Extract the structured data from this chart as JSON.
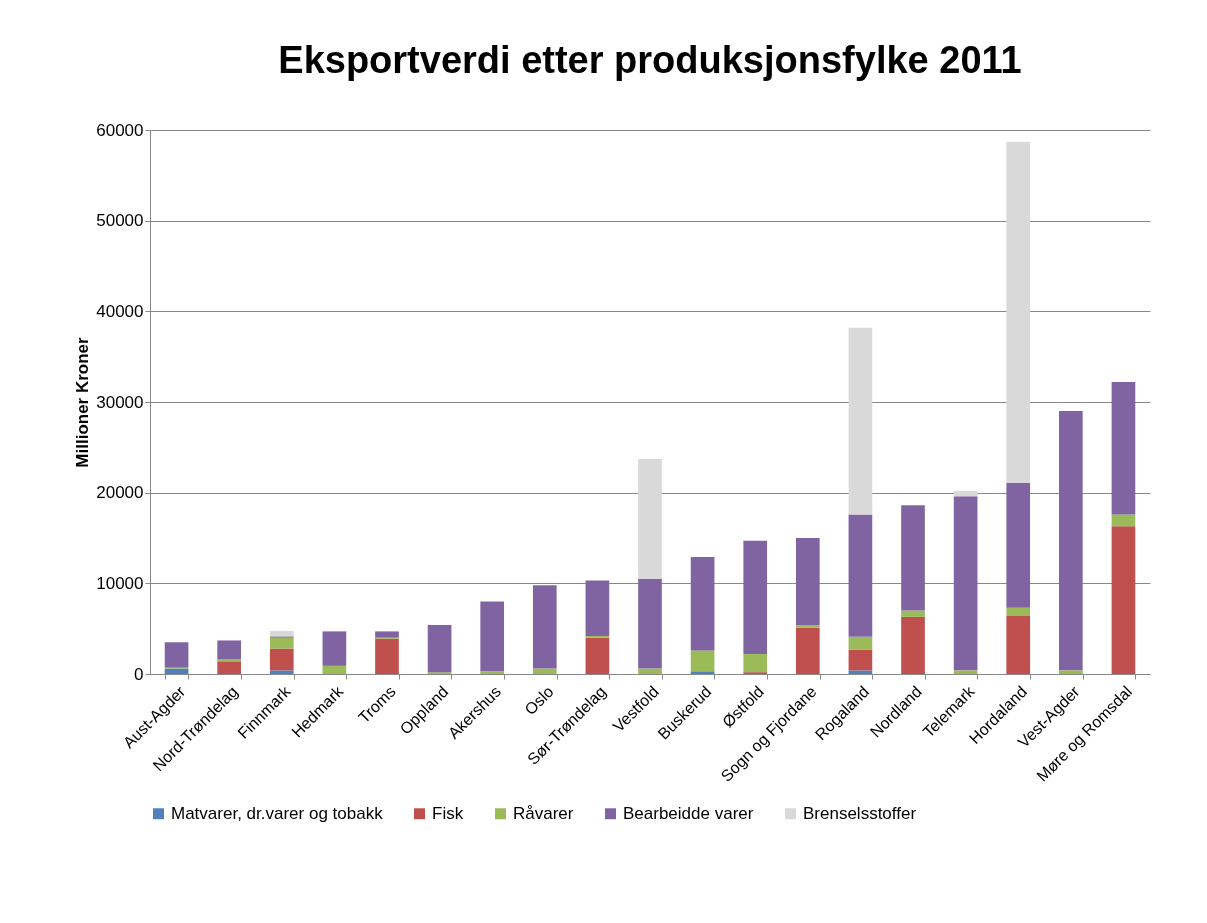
{
  "chart_data": {
    "type": "bar",
    "title": "Eksportverdi etter produksjonsfylke 2011",
    "ylabel": "Millioner Kroner",
    "stacked": true,
    "grid": "y",
    "legend": "bottom",
    "categories": [
      "Aust-Agder",
      "Nord-Trøndelag",
      "Finnmark",
      "Hedmark",
      "Troms",
      "Oppland",
      "Akershus",
      "Oslo",
      "Sør-Trøndelag",
      "Vestfold",
      "Buskerud",
      "Østfold",
      "Sogn og Fjordane",
      "Rogaland",
      "Nordland",
      "Telemark",
      "Hordaland",
      "Vest-Agder",
      "Møre og Romsdal"
    ],
    "ylim": [
      0,
      60000
    ],
    "yticks": [
      0,
      10000,
      20000,
      30000,
      40000,
      50000,
      60000
    ],
    "series": [
      {
        "name": "Matvarer, dr.varer og tobakk",
        "color": "#4f81bd",
        "values": [
          600,
          0,
          400,
          0,
          0,
          0,
          0,
          0,
          0,
          0,
          300,
          0,
          0,
          400,
          0,
          0,
          0,
          0,
          0
        ]
      },
      {
        "name": "Fisk",
        "color": "#c0504d",
        "values": [
          0,
          1400,
          2400,
          0,
          3900,
          0,
          0,
          0,
          4000,
          0,
          0,
          200,
          5100,
          2300,
          6300,
          0,
          6400,
          0,
          16300
        ]
      },
      {
        "name": "Råvarer",
        "color": "#9bbb59",
        "values": [
          100,
          200,
          1200,
          900,
          100,
          200,
          300,
          600,
          200,
          600,
          2300,
          2000,
          300,
          1400,
          700,
          400,
          900,
          400,
          1300
        ]
      },
      {
        "name": "Bearbeidde varer",
        "color": "#8064a2",
        "values": [
          2800,
          2100,
          150,
          3800,
          700,
          5200,
          7700,
          9200,
          6100,
          9900,
          10300,
          12500,
          9600,
          13500,
          11600,
          19200,
          13800,
          28600,
          14600
        ]
      },
      {
        "name": "Brenselsstoffer",
        "color": "#d9d9d9",
        "values": [
          0,
          0,
          600,
          0,
          0,
          0,
          0,
          0,
          0,
          13200,
          0,
          0,
          0,
          20600,
          0,
          600,
          37600,
          0,
          0
        ]
      }
    ]
  }
}
